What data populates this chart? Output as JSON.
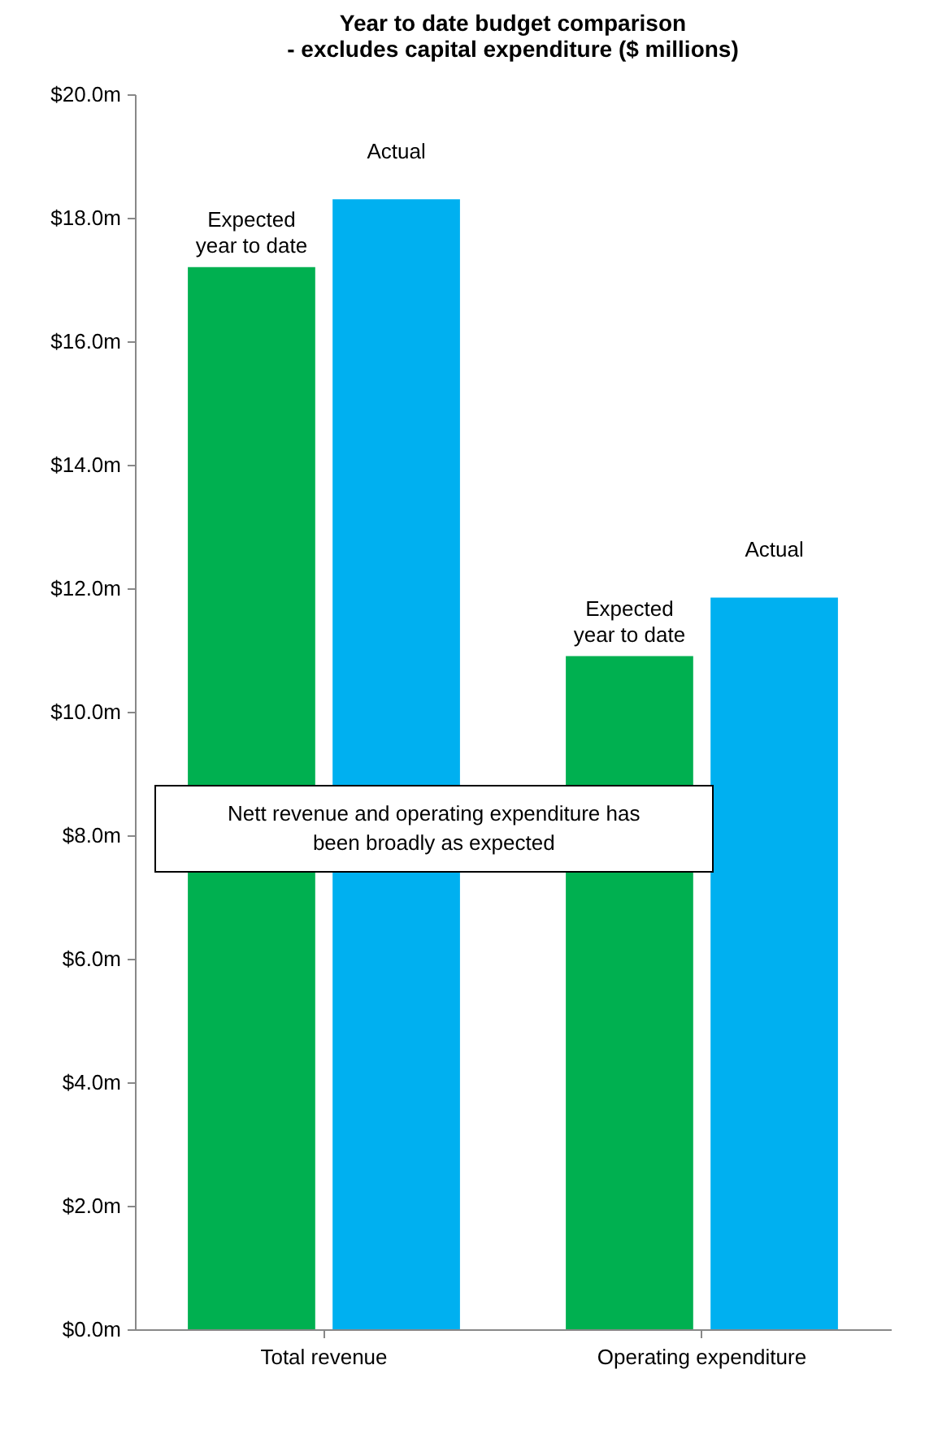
{
  "chart_data": {
    "type": "bar",
    "title": [
      "Year to date budget comparison",
      "- excludes capital expenditure ($ millions)"
    ],
    "categories": [
      "Total revenue",
      "Operating expenditure"
    ],
    "series": [
      {
        "name": "Expected year to date",
        "color": "#00b050",
        "values": [
          17.2,
          10.9
        ]
      },
      {
        "name": "Actual",
        "color": "#00b0f0",
        "values": [
          18.3,
          11.85
        ]
      }
    ],
    "ylim": [
      0,
      20
    ],
    "yticks": [
      {
        "value": 0,
        "label": "$0.0m"
      },
      {
        "value": 2,
        "label": "$2.0m"
      },
      {
        "value": 4,
        "label": "$4.0m"
      },
      {
        "value": 6,
        "label": "$6.0m"
      },
      {
        "value": 8,
        "label": "$8.0m"
      },
      {
        "value": 10,
        "label": "$10.0m"
      },
      {
        "value": 12,
        "label": "$12.0m"
      },
      {
        "value": 14,
        "label": "$14.0m"
      },
      {
        "value": 16,
        "label": "$16.0m"
      },
      {
        "value": 18,
        "label": "$18.0m"
      },
      {
        "value": 20,
        "label": "$20.0m"
      }
    ],
    "annotations": [
      "Nett revenue and operating expenditure has been broadly as expected"
    ],
    "legend": false
  }
}
